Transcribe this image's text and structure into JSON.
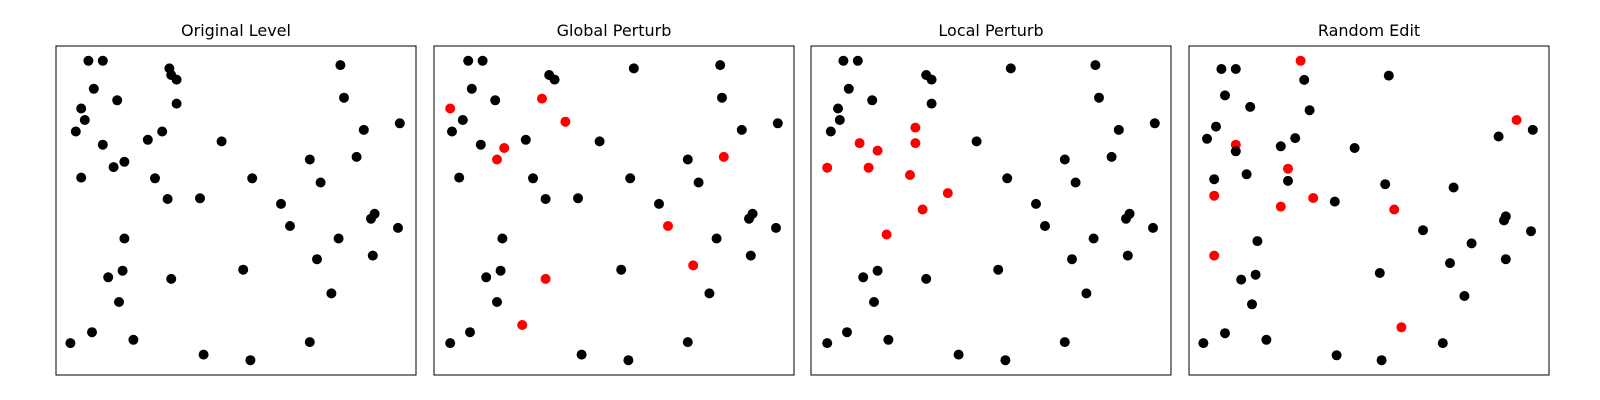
{
  "colors": {
    "original": "#000000",
    "modified": "#ff0000",
    "frame": "#000000"
  },
  "chart_data": [
    {
      "type": "scatter",
      "title": "Original Level",
      "xlim": [
        0,
        1
      ],
      "ylim": [
        0,
        1
      ],
      "grid": false,
      "points": [
        {
          "x": 0.09,
          "y": 0.955,
          "c": 0
        },
        {
          "x": 0.13,
          "y": 0.955,
          "c": 0
        },
        {
          "x": 0.315,
          "y": 0.932,
          "c": 0
        },
        {
          "x": 0.79,
          "y": 0.942,
          "c": 0
        },
        {
          "x": 0.32,
          "y": 0.912,
          "c": 0
        },
        {
          "x": 0.335,
          "y": 0.898,
          "c": 0
        },
        {
          "x": 0.105,
          "y": 0.87,
          "c": 0
        },
        {
          "x": 0.8,
          "y": 0.843,
          "c": 0
        },
        {
          "x": 0.17,
          "y": 0.835,
          "c": 0
        },
        {
          "x": 0.335,
          "y": 0.825,
          "c": 0
        },
        {
          "x": 0.07,
          "y": 0.81,
          "c": 0
        },
        {
          "x": 0.08,
          "y": 0.775,
          "c": 0
        },
        {
          "x": 0.055,
          "y": 0.74,
          "c": 0
        },
        {
          "x": 0.295,
          "y": 0.74,
          "c": 0
        },
        {
          "x": 0.855,
          "y": 0.745,
          "c": 0
        },
        {
          "x": 0.955,
          "y": 0.765,
          "c": 0
        },
        {
          "x": 0.255,
          "y": 0.715,
          "c": 0
        },
        {
          "x": 0.46,
          "y": 0.71,
          "c": 0
        },
        {
          "x": 0.13,
          "y": 0.7,
          "c": 0
        },
        {
          "x": 0.835,
          "y": 0.663,
          "c": 0
        },
        {
          "x": 0.705,
          "y": 0.655,
          "c": 0
        },
        {
          "x": 0.19,
          "y": 0.648,
          "c": 0
        },
        {
          "x": 0.16,
          "y": 0.632,
          "c": 0
        },
        {
          "x": 0.07,
          "y": 0.6,
          "c": 0
        },
        {
          "x": 0.275,
          "y": 0.598,
          "c": 0
        },
        {
          "x": 0.545,
          "y": 0.598,
          "c": 0
        },
        {
          "x": 0.735,
          "y": 0.585,
          "c": 0
        },
        {
          "x": 0.31,
          "y": 0.535,
          "c": 0
        },
        {
          "x": 0.4,
          "y": 0.537,
          "c": 0
        },
        {
          "x": 0.625,
          "y": 0.52,
          "c": 0
        },
        {
          "x": 0.885,
          "y": 0.49,
          "c": 0
        },
        {
          "x": 0.875,
          "y": 0.475,
          "c": 0
        },
        {
          "x": 0.65,
          "y": 0.453,
          "c": 0
        },
        {
          "x": 0.95,
          "y": 0.447,
          "c": 0
        },
        {
          "x": 0.19,
          "y": 0.415,
          "c": 0
        },
        {
          "x": 0.785,
          "y": 0.415,
          "c": 0
        },
        {
          "x": 0.88,
          "y": 0.363,
          "c": 0
        },
        {
          "x": 0.725,
          "y": 0.352,
          "c": 0
        },
        {
          "x": 0.52,
          "y": 0.32,
          "c": 0
        },
        {
          "x": 0.185,
          "y": 0.317,
          "c": 0
        },
        {
          "x": 0.145,
          "y": 0.297,
          "c": 0
        },
        {
          "x": 0.32,
          "y": 0.292,
          "c": 0
        },
        {
          "x": 0.765,
          "y": 0.248,
          "c": 0
        },
        {
          "x": 0.175,
          "y": 0.222,
          "c": 0
        },
        {
          "x": 0.1,
          "y": 0.13,
          "c": 0
        },
        {
          "x": 0.215,
          "y": 0.107,
          "c": 0
        },
        {
          "x": 0.705,
          "y": 0.1,
          "c": 0
        },
        {
          "x": 0.04,
          "y": 0.097,
          "c": 0
        },
        {
          "x": 0.41,
          "y": 0.062,
          "c": 0
        },
        {
          "x": 0.54,
          "y": 0.045,
          "c": 0
        }
      ]
    },
    {
      "type": "scatter",
      "title": "Global Perturb",
      "xlim": [
        0,
        1
      ],
      "ylim": [
        0,
        1
      ],
      "grid": false,
      "points": [
        {
          "x": 0.095,
          "y": 0.955,
          "c": 0
        },
        {
          "x": 0.135,
          "y": 0.955,
          "c": 0
        },
        {
          "x": 0.555,
          "y": 0.932,
          "c": 0
        },
        {
          "x": 0.795,
          "y": 0.942,
          "c": 0
        },
        {
          "x": 0.32,
          "y": 0.912,
          "c": 0
        },
        {
          "x": 0.335,
          "y": 0.898,
          "c": 0
        },
        {
          "x": 0.105,
          "y": 0.87,
          "c": 0
        },
        {
          "x": 0.8,
          "y": 0.843,
          "c": 0
        },
        {
          "x": 0.17,
          "y": 0.835,
          "c": 0
        },
        {
          "x": 0.3,
          "y": 0.84,
          "c": 1
        },
        {
          "x": 0.045,
          "y": 0.81,
          "c": 1
        },
        {
          "x": 0.08,
          "y": 0.775,
          "c": 0
        },
        {
          "x": 0.365,
          "y": 0.77,
          "c": 1
        },
        {
          "x": 0.05,
          "y": 0.74,
          "c": 0
        },
        {
          "x": 0.855,
          "y": 0.745,
          "c": 0
        },
        {
          "x": 0.955,
          "y": 0.765,
          "c": 0
        },
        {
          "x": 0.255,
          "y": 0.715,
          "c": 0
        },
        {
          "x": 0.46,
          "y": 0.71,
          "c": 0
        },
        {
          "x": 0.13,
          "y": 0.7,
          "c": 0
        },
        {
          "x": 0.195,
          "y": 0.69,
          "c": 1
        },
        {
          "x": 0.175,
          "y": 0.655,
          "c": 1
        },
        {
          "x": 0.805,
          "y": 0.663,
          "c": 1
        },
        {
          "x": 0.705,
          "y": 0.655,
          "c": 0
        },
        {
          "x": 0.07,
          "y": 0.6,
          "c": 0
        },
        {
          "x": 0.275,
          "y": 0.598,
          "c": 0
        },
        {
          "x": 0.545,
          "y": 0.598,
          "c": 0
        },
        {
          "x": 0.735,
          "y": 0.585,
          "c": 0
        },
        {
          "x": 0.31,
          "y": 0.535,
          "c": 0
        },
        {
          "x": 0.4,
          "y": 0.537,
          "c": 0
        },
        {
          "x": 0.625,
          "y": 0.52,
          "c": 0
        },
        {
          "x": 0.885,
          "y": 0.49,
          "c": 0
        },
        {
          "x": 0.875,
          "y": 0.475,
          "c": 0
        },
        {
          "x": 0.65,
          "y": 0.453,
          "c": 1
        },
        {
          "x": 0.95,
          "y": 0.447,
          "c": 0
        },
        {
          "x": 0.19,
          "y": 0.415,
          "c": 0
        },
        {
          "x": 0.785,
          "y": 0.415,
          "c": 0
        },
        {
          "x": 0.88,
          "y": 0.363,
          "c": 0
        },
        {
          "x": 0.72,
          "y": 0.333,
          "c": 1
        },
        {
          "x": 0.52,
          "y": 0.32,
          "c": 0
        },
        {
          "x": 0.185,
          "y": 0.317,
          "c": 0
        },
        {
          "x": 0.145,
          "y": 0.297,
          "c": 0
        },
        {
          "x": 0.31,
          "y": 0.292,
          "c": 1
        },
        {
          "x": 0.765,
          "y": 0.248,
          "c": 0
        },
        {
          "x": 0.175,
          "y": 0.222,
          "c": 0
        },
        {
          "x": 0.245,
          "y": 0.152,
          "c": 1
        },
        {
          "x": 0.1,
          "y": 0.13,
          "c": 0
        },
        {
          "x": 0.705,
          "y": 0.1,
          "c": 0
        },
        {
          "x": 0.045,
          "y": 0.097,
          "c": 0
        },
        {
          "x": 0.41,
          "y": 0.062,
          "c": 0
        },
        {
          "x": 0.54,
          "y": 0.045,
          "c": 0
        }
      ]
    },
    {
      "type": "scatter",
      "title": "Local Perturb",
      "xlim": [
        0,
        1
      ],
      "ylim": [
        0,
        1
      ],
      "grid": false,
      "points": [
        {
          "x": 0.09,
          "y": 0.955,
          "c": 0
        },
        {
          "x": 0.13,
          "y": 0.955,
          "c": 0
        },
        {
          "x": 0.555,
          "y": 0.932,
          "c": 0
        },
        {
          "x": 0.79,
          "y": 0.942,
          "c": 0
        },
        {
          "x": 0.32,
          "y": 0.912,
          "c": 0
        },
        {
          "x": 0.335,
          "y": 0.898,
          "c": 0
        },
        {
          "x": 0.105,
          "y": 0.87,
          "c": 0
        },
        {
          "x": 0.8,
          "y": 0.843,
          "c": 0
        },
        {
          "x": 0.17,
          "y": 0.835,
          "c": 0
        },
        {
          "x": 0.335,
          "y": 0.825,
          "c": 0
        },
        {
          "x": 0.075,
          "y": 0.81,
          "c": 0
        },
        {
          "x": 0.08,
          "y": 0.775,
          "c": 0
        },
        {
          "x": 0.29,
          "y": 0.752,
          "c": 1
        },
        {
          "x": 0.055,
          "y": 0.74,
          "c": 0
        },
        {
          "x": 0.855,
          "y": 0.745,
          "c": 0
        },
        {
          "x": 0.955,
          "y": 0.765,
          "c": 0
        },
        {
          "x": 0.135,
          "y": 0.705,
          "c": 1
        },
        {
          "x": 0.46,
          "y": 0.71,
          "c": 0
        },
        {
          "x": 0.185,
          "y": 0.682,
          "c": 1
        },
        {
          "x": 0.29,
          "y": 0.705,
          "c": 1
        },
        {
          "x": 0.835,
          "y": 0.663,
          "c": 0
        },
        {
          "x": 0.705,
          "y": 0.655,
          "c": 0
        },
        {
          "x": 0.045,
          "y": 0.63,
          "c": 1
        },
        {
          "x": 0.16,
          "y": 0.63,
          "c": 1
        },
        {
          "x": 0.275,
          "y": 0.608,
          "c": 1
        },
        {
          "x": 0.545,
          "y": 0.598,
          "c": 0
        },
        {
          "x": 0.735,
          "y": 0.585,
          "c": 0
        },
        {
          "x": 0.38,
          "y": 0.553,
          "c": 1
        },
        {
          "x": 0.625,
          "y": 0.52,
          "c": 0
        },
        {
          "x": 0.31,
          "y": 0.503,
          "c": 1
        },
        {
          "x": 0.885,
          "y": 0.49,
          "c": 0
        },
        {
          "x": 0.875,
          "y": 0.475,
          "c": 0
        },
        {
          "x": 0.65,
          "y": 0.453,
          "c": 0
        },
        {
          "x": 0.95,
          "y": 0.447,
          "c": 0
        },
        {
          "x": 0.21,
          "y": 0.427,
          "c": 1
        },
        {
          "x": 0.785,
          "y": 0.415,
          "c": 0
        },
        {
          "x": 0.88,
          "y": 0.363,
          "c": 0
        },
        {
          "x": 0.725,
          "y": 0.352,
          "c": 0
        },
        {
          "x": 0.52,
          "y": 0.32,
          "c": 0
        },
        {
          "x": 0.185,
          "y": 0.317,
          "c": 0
        },
        {
          "x": 0.145,
          "y": 0.297,
          "c": 0
        },
        {
          "x": 0.32,
          "y": 0.292,
          "c": 0
        },
        {
          "x": 0.765,
          "y": 0.248,
          "c": 0
        },
        {
          "x": 0.175,
          "y": 0.222,
          "c": 0
        },
        {
          "x": 0.1,
          "y": 0.13,
          "c": 0
        },
        {
          "x": 0.215,
          "y": 0.107,
          "c": 0
        },
        {
          "x": 0.705,
          "y": 0.1,
          "c": 0
        },
        {
          "x": 0.045,
          "y": 0.097,
          "c": 0
        },
        {
          "x": 0.41,
          "y": 0.062,
          "c": 0
        },
        {
          "x": 0.54,
          "y": 0.045,
          "c": 0
        }
      ]
    },
    {
      "type": "scatter",
      "title": "Random Edit",
      "xlim": [
        0,
        1
      ],
      "ylim": [
        0,
        1
      ],
      "grid": false,
      "points": [
        {
          "x": 0.31,
          "y": 0.955,
          "c": 1
        },
        {
          "x": 0.09,
          "y": 0.93,
          "c": 0
        },
        {
          "x": 0.13,
          "y": 0.93,
          "c": 0
        },
        {
          "x": 0.555,
          "y": 0.91,
          "c": 0
        },
        {
          "x": 0.32,
          "y": 0.897,
          "c": 0
        },
        {
          "x": 0.1,
          "y": 0.85,
          "c": 0
        },
        {
          "x": 0.17,
          "y": 0.815,
          "c": 0
        },
        {
          "x": 0.335,
          "y": 0.805,
          "c": 0
        },
        {
          "x": 0.91,
          "y": 0.775,
          "c": 1
        },
        {
          "x": 0.075,
          "y": 0.755,
          "c": 0
        },
        {
          "x": 0.955,
          "y": 0.745,
          "c": 0
        },
        {
          "x": 0.05,
          "y": 0.718,
          "c": 0
        },
        {
          "x": 0.295,
          "y": 0.72,
          "c": 0
        },
        {
          "x": 0.86,
          "y": 0.725,
          "c": 0
        },
        {
          "x": 0.13,
          "y": 0.7,
          "c": 1
        },
        {
          "x": 0.255,
          "y": 0.695,
          "c": 0
        },
        {
          "x": 0.46,
          "y": 0.69,
          "c": 0
        },
        {
          "x": 0.13,
          "y": 0.68,
          "c": 0
        },
        {
          "x": 0.275,
          "y": 0.627,
          "c": 1
        },
        {
          "x": 0.16,
          "y": 0.61,
          "c": 0
        },
        {
          "x": 0.07,
          "y": 0.595,
          "c": 0
        },
        {
          "x": 0.275,
          "y": 0.59,
          "c": 0
        },
        {
          "x": 0.545,
          "y": 0.58,
          "c": 0
        },
        {
          "x": 0.735,
          "y": 0.57,
          "c": 0
        },
        {
          "x": 0.07,
          "y": 0.545,
          "c": 1
        },
        {
          "x": 0.345,
          "y": 0.538,
          "c": 1
        },
        {
          "x": 0.405,
          "y": 0.527,
          "c": 0
        },
        {
          "x": 0.255,
          "y": 0.512,
          "c": 1
        },
        {
          "x": 0.57,
          "y": 0.503,
          "c": 1
        },
        {
          "x": 0.88,
          "y": 0.482,
          "c": 0
        },
        {
          "x": 0.875,
          "y": 0.47,
          "c": 0
        },
        {
          "x": 0.65,
          "y": 0.44,
          "c": 0
        },
        {
          "x": 0.95,
          "y": 0.437,
          "c": 0
        },
        {
          "x": 0.19,
          "y": 0.407,
          "c": 0
        },
        {
          "x": 0.785,
          "y": 0.4,
          "c": 0
        },
        {
          "x": 0.07,
          "y": 0.363,
          "c": 1
        },
        {
          "x": 0.88,
          "y": 0.352,
          "c": 0
        },
        {
          "x": 0.725,
          "y": 0.34,
          "c": 0
        },
        {
          "x": 0.53,
          "y": 0.31,
          "c": 0
        },
        {
          "x": 0.185,
          "y": 0.305,
          "c": 0
        },
        {
          "x": 0.145,
          "y": 0.29,
          "c": 0
        },
        {
          "x": 0.765,
          "y": 0.24,
          "c": 0
        },
        {
          "x": 0.175,
          "y": 0.215,
          "c": 0
        },
        {
          "x": 0.59,
          "y": 0.145,
          "c": 1
        },
        {
          "x": 0.1,
          "y": 0.127,
          "c": 0
        },
        {
          "x": 0.215,
          "y": 0.107,
          "c": 0
        },
        {
          "x": 0.705,
          "y": 0.097,
          "c": 0
        },
        {
          "x": 0.04,
          "y": 0.097,
          "c": 0
        },
        {
          "x": 0.41,
          "y": 0.06,
          "c": 0
        },
        {
          "x": 0.535,
          "y": 0.045,
          "c": 0
        }
      ]
    }
  ]
}
